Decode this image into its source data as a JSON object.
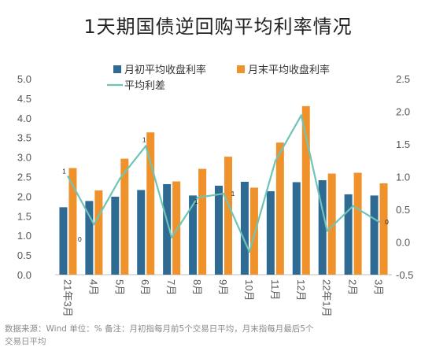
{
  "chart_data": {
    "type": "bar",
    "title": "1天期国债逆回购平均利率情况",
    "categories": [
      "21年3月",
      "4月",
      "5月",
      "6月",
      "7月",
      "8月",
      "9月",
      "10月",
      "11月",
      "12月",
      "22年1月",
      "2月",
      "3月"
    ],
    "series": [
      {
        "name": "月初平均收盘利率",
        "type": "bar",
        "axis": "left",
        "color": "#2e6a92",
        "values": [
          1.72,
          1.88,
          1.99,
          2.16,
          2.31,
          2.02,
          2.27,
          2.37,
          2.13,
          2.36,
          2.41,
          2.05,
          2.02
        ]
      },
      {
        "name": "月末平均收盘利率",
        "type": "bar",
        "axis": "left",
        "color": "#f0922b",
        "values": [
          2.72,
          2.15,
          2.96,
          3.63,
          2.38,
          2.7,
          3.01,
          2.22,
          3.37,
          4.3,
          2.58,
          2.6,
          2.33
        ]
      },
      {
        "name": "平均利差",
        "type": "line",
        "axis": "right",
        "color": "#6ec4b6",
        "values": [
          1.0,
          0.27,
          0.97,
          1.47,
          0.07,
          0.68,
          0.74,
          -0.15,
          1.24,
          1.94,
          0.17,
          0.55,
          0.31
        ]
      }
    ],
    "y_left": {
      "min": 0.0,
      "max": 5.0,
      "ticks": [
        "5.0",
        "4.5",
        "4.0",
        "3.5",
        "3.0",
        "2.5",
        "2.0",
        "1.5",
        "1.0",
        "0.5",
        "0.0"
      ]
    },
    "y_right": {
      "min": -0.5,
      "max": 2.5,
      "ticks": [
        "2.5",
        "2.0",
        "1.5",
        "1.0",
        "0.5",
        "0.0",
        "-0.5"
      ]
    },
    "annotations": [
      {
        "category": "21年3月",
        "text": "1"
      },
      {
        "category": "4月",
        "text": "0"
      },
      {
        "category": "6月",
        "text": "1"
      },
      {
        "category": "8月",
        "text": "1"
      },
      {
        "category": "9月",
        "text": "1"
      },
      {
        "category": "3月",
        "text": "0"
      }
    ],
    "legend": "top"
  },
  "footnote": {
    "line1": "数据来源：Wind   单位：%   备注：月初指每月前5个交易日平均，月末指每月最后5个",
    "line2": "交易日平均"
  }
}
